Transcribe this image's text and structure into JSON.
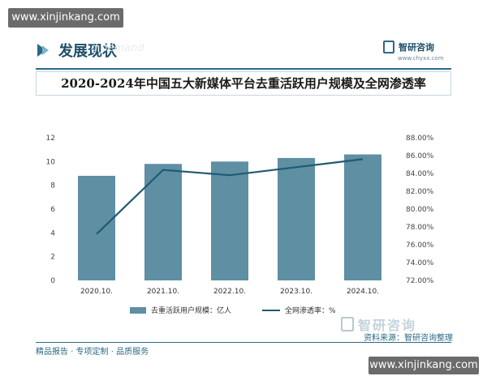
{
  "watermark_top": "www.xinjinkang.com",
  "watermark_bottom": "www.xinjinkang.com",
  "section": {
    "title": "发展现状",
    "ghost": "d demand"
  },
  "brand": {
    "name": "智研咨询",
    "url": "www.chyxx.com"
  },
  "chart_title": "2020-2024年中国五大新媒体平台去重活跃用户规模及全网渗透率",
  "chart_data": {
    "type": "bar",
    "categories": [
      "2020.10.",
      "2021.10.",
      "2022.10.",
      "2023.10.",
      "2024.10."
    ],
    "series": [
      {
        "name": "去重活跃用户规模：亿人",
        "type": "bar",
        "axis": "left",
        "values": [
          8.8,
          9.8,
          10.0,
          10.3,
          10.6
        ]
      },
      {
        "name": "全网渗透率：%",
        "type": "line",
        "axis": "right",
        "values": [
          77.2,
          84.4,
          83.8,
          84.7,
          85.6
        ]
      }
    ],
    "y_left": {
      "ticks": [
        "0",
        "2",
        "4",
        "6",
        "8",
        "10",
        "12"
      ],
      "range": [
        0,
        12
      ]
    },
    "y_right": {
      "ticks": [
        "72.00%",
        "74.00%",
        "76.00%",
        "78.00%",
        "80.00%",
        "82.00%",
        "84.00%",
        "86.00%",
        "88.00%"
      ],
      "range": [
        72,
        88
      ]
    },
    "colors": {
      "bar": "#5e8fa3",
      "line": "#1f5b73"
    }
  },
  "brand_mark": "智研咨询",
  "source": "资料来源：智研咨询整理",
  "footer": "精品报告 · 专项定制 · 品质服务"
}
